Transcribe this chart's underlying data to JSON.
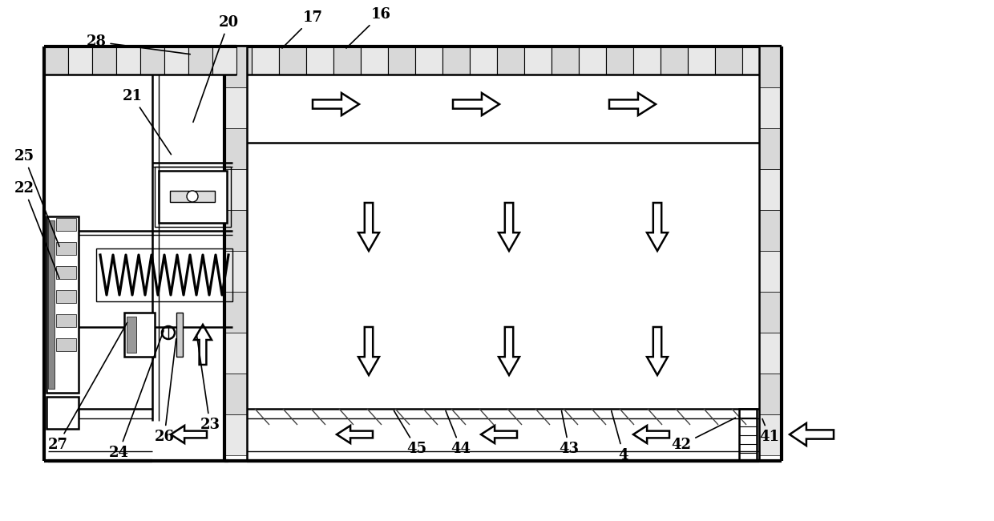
{
  "bg_color": "#ffffff",
  "line_color": "#000000",
  "fig_width": 12.4,
  "fig_height": 6.5,
  "dpi": 100
}
